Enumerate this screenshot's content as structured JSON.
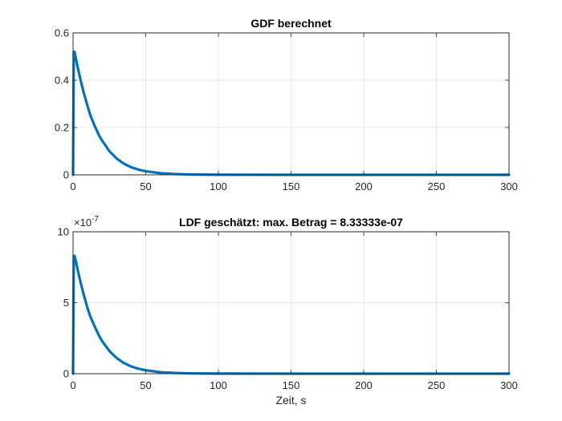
{
  "chart_data": [
    {
      "type": "line",
      "title": "GDF berechnet",
      "xlabel": "",
      "ylabel": "",
      "xlim": [
        0,
        300
      ],
      "ylim": [
        0,
        0.6
      ],
      "xticks": [
        0,
        50,
        100,
        150,
        200,
        250,
        300
      ],
      "xtick_labels": [
        "0",
        "50",
        "100",
        "150",
        "200",
        "250",
        "300"
      ],
      "yticks": [
        0,
        0.2,
        0.4,
        0.6
      ],
      "ytick_labels": [
        "0",
        "0.2",
        "0.4",
        "0.6"
      ],
      "grid": true,
      "series": [
        {
          "color": "#0072BD",
          "x": [
            0,
            0.5,
            1,
            2,
            3,
            5,
            7,
            10,
            12,
            15,
            18,
            20,
            25,
            30,
            35,
            40,
            45,
            50,
            60,
            70,
            80,
            100,
            150,
            200,
            250,
            300
          ],
          "y": [
            0,
            0.52,
            0.52,
            0.49,
            0.46,
            0.405,
            0.355,
            0.29,
            0.25,
            0.205,
            0.165,
            0.145,
            0.1,
            0.069,
            0.047,
            0.032,
            0.022,
            0.015,
            0.007,
            0.0033,
            0.0015,
            0.0003,
            0,
            0,
            0,
            0
          ]
        }
      ]
    },
    {
      "type": "line",
      "title": "LDF geschätzt: max. Betrag = 8.33333e-07",
      "xlabel": "Zeit, s",
      "ylabel": "",
      "xlim": [
        0,
        300
      ],
      "ylim": [
        0,
        1e-06
      ],
      "xticks": [
        0,
        50,
        100,
        150,
        200,
        250,
        300
      ],
      "xtick_labels": [
        "0",
        "50",
        "100",
        "150",
        "200",
        "250",
        "300"
      ],
      "yticks": [
        0,
        5e-07,
        1e-06
      ],
      "ytick_labels": [
        "0",
        "5",
        "10"
      ],
      "exponent_label": "×10",
      "exponent_power": "-7",
      "grid": true,
      "series": [
        {
          "color": "#0072BD",
          "x": [
            0,
            0.5,
            1,
            2,
            3,
            5,
            7,
            10,
            12,
            15,
            18,
            20,
            25,
            30,
            35,
            40,
            45,
            50,
            60,
            70,
            80,
            100,
            150,
            200,
            250,
            300
          ],
          "y": [
            0,
            8.3e-07,
            8.3e-07,
            7.9e-07,
            7.4e-07,
            6.5e-07,
            5.7e-07,
            4.6e-07,
            4e-07,
            3.3e-07,
            2.65e-07,
            2.3e-07,
            1.6e-07,
            1.1e-07,
            7.5e-08,
            5.1e-08,
            3.5e-08,
            2.4e-08,
            1.1e-08,
            5.2e-09,
            2.4e-09,
            5e-10,
            0,
            0,
            0,
            0
          ]
        }
      ]
    }
  ]
}
